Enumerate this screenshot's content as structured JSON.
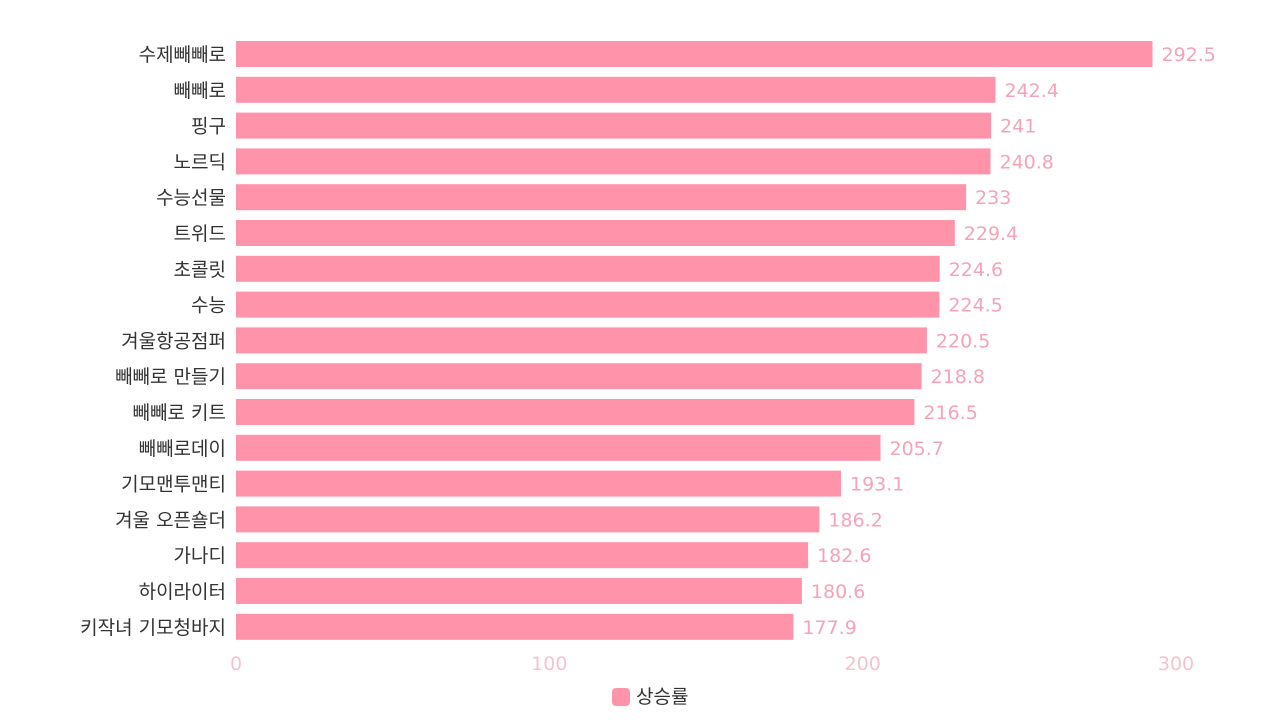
{
  "chart_data": {
    "type": "bar",
    "orientation": "horizontal",
    "categories": [
      "수제빼빼로",
      "빼빼로",
      "핑구",
      "노르딕",
      "수능선물",
      "트위드",
      "초콜릿",
      "수능",
      "겨울항공점퍼",
      "빼빼로 만들기",
      "빼빼로 키트",
      "빼빼로데이",
      "기모맨투맨티",
      "겨울 오픈숄더",
      "가나디",
      "하이라이터",
      "키작녀 기모청바지"
    ],
    "series": [
      {
        "name": "상승률",
        "values": [
          292.5,
          242.4,
          241,
          240.8,
          233,
          229.4,
          224.6,
          224.5,
          220.5,
          218.8,
          216.5,
          205.7,
          193.1,
          186.2,
          182.6,
          180.6,
          177.9
        ],
        "value_labels": [
          "292.5",
          "242.4",
          "241",
          "240.8",
          "233",
          "229.4",
          "224.6",
          "224.5",
          "220.5",
          "218.8",
          "216.5",
          "205.7",
          "193.1",
          "186.2",
          "182.6",
          "180.6",
          "177.9"
        ],
        "color": "#ff93a9"
      }
    ],
    "xlim": [
      0,
      300
    ],
    "xticks": [
      "0",
      "100",
      "200",
      "300"
    ],
    "grid": false,
    "legend": "bottom-center",
    "value_label_color": "#f5a3b8",
    "tick_label_color": "#f5c2cf"
  }
}
